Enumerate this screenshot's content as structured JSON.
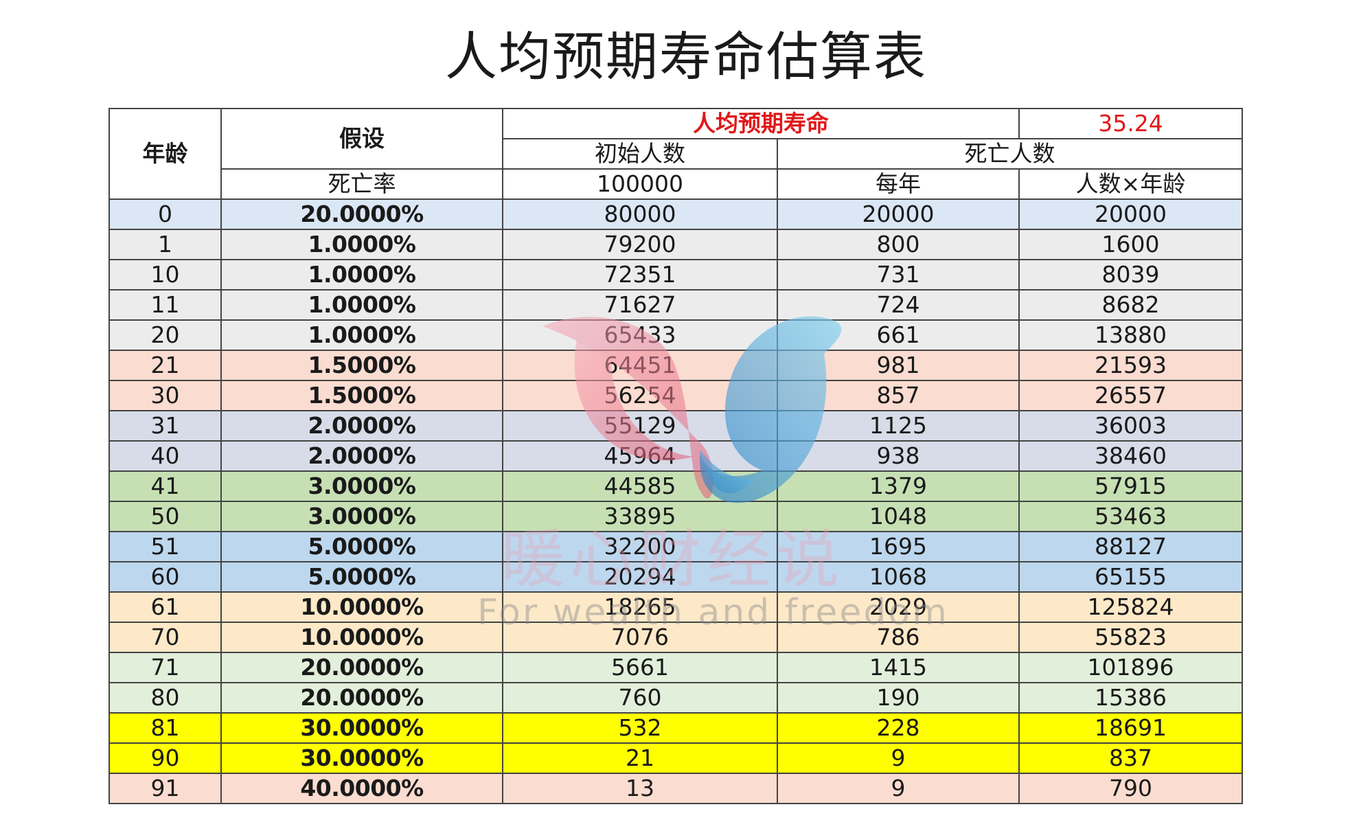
{
  "title": "人均预期寿命估算表",
  "header": {
    "age": "年龄",
    "assumption": "假设",
    "mortality_rate": "死亡率",
    "life_expectancy_label": "人均预期寿命",
    "life_expectancy_value": "35.24",
    "initial_population": "初始人数",
    "initial_population_value": "100000",
    "deaths": "死亡人数",
    "per_year": "每年",
    "count_times_age": "人数×年龄"
  },
  "colors": {
    "blue_light": "#dbe7f5",
    "grey": "#ececec",
    "salmon": "#fbdcd0",
    "slate": "#d7dce8",
    "green": "#c6e0b4",
    "blue": "#bdd7ee",
    "cream": "#fde9c8",
    "mint": "#e2efda",
    "yellow": "#ffff00",
    "accent_red": "#e01818"
  },
  "rows": [
    {
      "age": "0",
      "rate": "20.0000%",
      "initial": "80000",
      "deaths": "20000",
      "product": "20000",
      "color": "blue_light"
    },
    {
      "age": "1",
      "rate": "1.0000%",
      "initial": "79200",
      "deaths": "800",
      "product": "1600",
      "color": "grey"
    },
    {
      "age": "10",
      "rate": "1.0000%",
      "initial": "72351",
      "deaths": "731",
      "product": "8039",
      "color": "grey"
    },
    {
      "age": "11",
      "rate": "1.0000%",
      "initial": "71627",
      "deaths": "724",
      "product": "8682",
      "color": "grey"
    },
    {
      "age": "20",
      "rate": "1.0000%",
      "initial": "65433",
      "deaths": "661",
      "product": "13880",
      "color": "grey"
    },
    {
      "age": "21",
      "rate": "1.5000%",
      "initial": "64451",
      "deaths": "981",
      "product": "21593",
      "color": "salmon"
    },
    {
      "age": "30",
      "rate": "1.5000%",
      "initial": "56254",
      "deaths": "857",
      "product": "26557",
      "color": "salmon"
    },
    {
      "age": "31",
      "rate": "2.0000%",
      "initial": "55129",
      "deaths": "1125",
      "product": "36003",
      "color": "slate"
    },
    {
      "age": "40",
      "rate": "2.0000%",
      "initial": "45964",
      "deaths": "938",
      "product": "38460",
      "color": "slate"
    },
    {
      "age": "41",
      "rate": "3.0000%",
      "initial": "44585",
      "deaths": "1379",
      "product": "57915",
      "color": "green"
    },
    {
      "age": "50",
      "rate": "3.0000%",
      "initial": "33895",
      "deaths": "1048",
      "product": "53463",
      "color": "green"
    },
    {
      "age": "51",
      "rate": "5.0000%",
      "initial": "32200",
      "deaths": "1695",
      "product": "88127",
      "color": "blue"
    },
    {
      "age": "60",
      "rate": "5.0000%",
      "initial": "20294",
      "deaths": "1068",
      "product": "65155",
      "color": "blue"
    },
    {
      "age": "61",
      "rate": "10.0000%",
      "initial": "18265",
      "deaths": "2029",
      "product": "125824",
      "color": "cream"
    },
    {
      "age": "70",
      "rate": "10.0000%",
      "initial": "7076",
      "deaths": "786",
      "product": "55823",
      "color": "cream"
    },
    {
      "age": "71",
      "rate": "20.0000%",
      "initial": "5661",
      "deaths": "1415",
      "product": "101896",
      "color": "mint"
    },
    {
      "age": "80",
      "rate": "20.0000%",
      "initial": "760",
      "deaths": "190",
      "product": "15386",
      "color": "mint"
    },
    {
      "age": "81",
      "rate": "30.0000%",
      "initial": "532",
      "deaths": "228",
      "product": "18691",
      "color": "yellow"
    },
    {
      "age": "90",
      "rate": "30.0000%",
      "initial": "21",
      "deaths": "9",
      "product": "837",
      "color": "yellow"
    },
    {
      "age": "91",
      "rate": "40.0000%",
      "initial": "13",
      "deaths": "9",
      "product": "790",
      "color": "salmon"
    }
  ],
  "watermark": {
    "brand": "暖心财经说",
    "slogan": "For wealth and freedom",
    "icon": "heart-bird-logo-icon"
  }
}
